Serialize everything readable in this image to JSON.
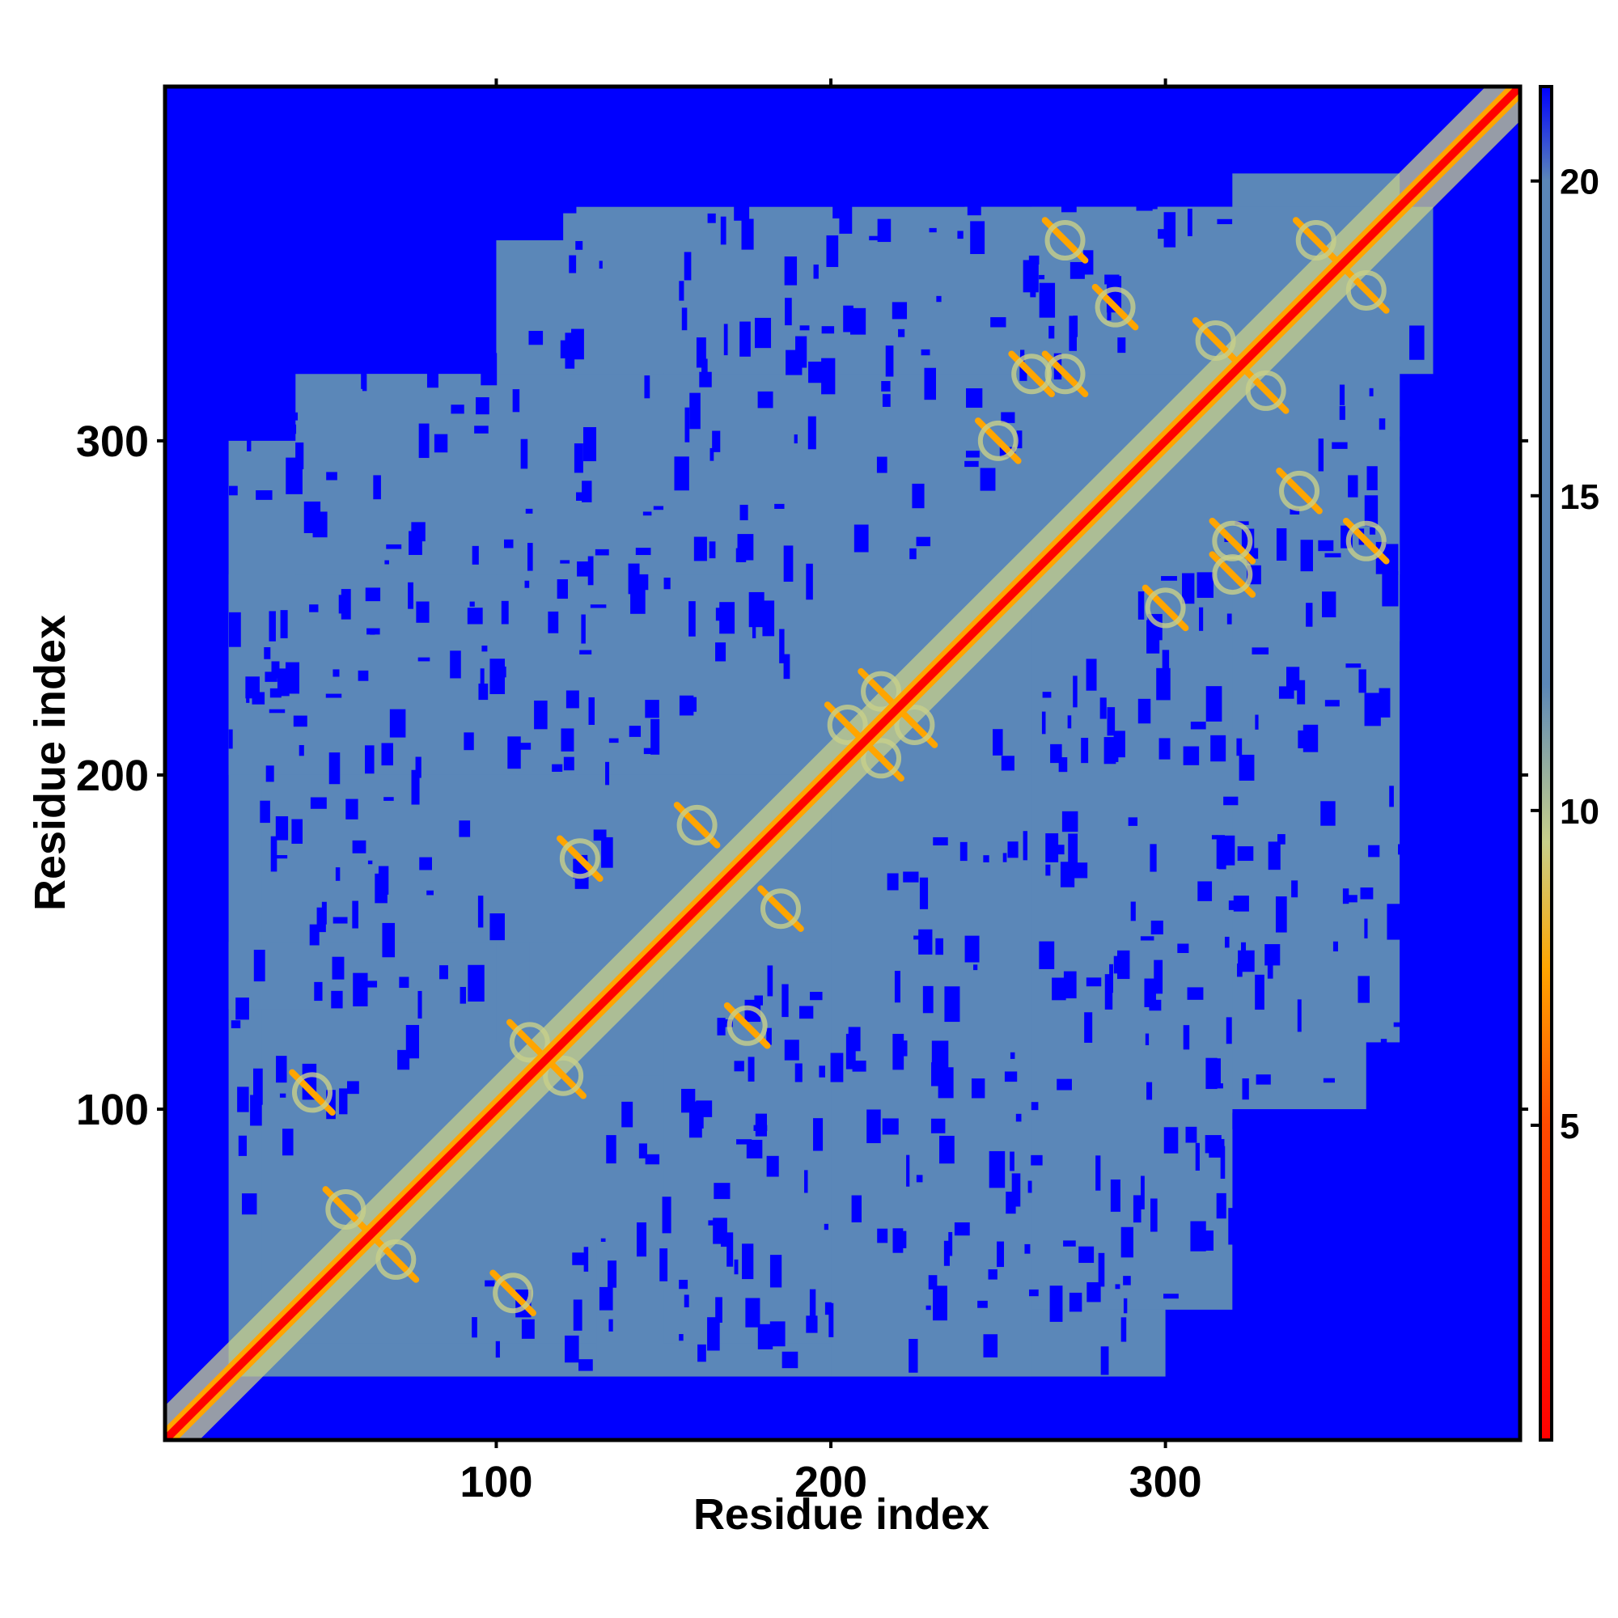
{
  "chart_data": {
    "type": "heatmap",
    "title": "",
    "xlabel": "Residue index",
    "ylabel": "Residue index",
    "xlim": [
      1,
      406
    ],
    "ylim": [
      1,
      406
    ],
    "x_ticks": [
      {
        "value": 100,
        "label": "100"
      },
      {
        "value": 200,
        "label": "200"
      },
      {
        "value": 300,
        "label": "300"
      }
    ],
    "y_ticks": [
      {
        "value": 100,
        "label": "100"
      },
      {
        "value": 200,
        "label": "200"
      },
      {
        "value": 300,
        "label": "300"
      }
    ],
    "colorbar": {
      "range": [
        0,
        21.5
      ],
      "ticks": [
        {
          "value": 5,
          "label": "5"
        },
        {
          "value": 10,
          "label": "10"
        },
        {
          "value": 15,
          "label": "15"
        },
        {
          "value": 20,
          "label": "20"
        }
      ],
      "stops": [
        {
          "value": 0,
          "color": "#ff0000"
        },
        {
          "value": 5,
          "color": "#ff4a00"
        },
        {
          "value": 7.5,
          "color": "#ffa500"
        },
        {
          "value": 9.5,
          "color": "#c8d08a"
        },
        {
          "value": 12,
          "color": "#5b87b8"
        },
        {
          "value": 20,
          "color": "#5b87b8"
        },
        {
          "value": 21.5,
          "color": "#0000ff"
        }
      ]
    },
    "colors": {
      "background_far": "#0000ff",
      "mid_distance": "#5b87b8",
      "contact_near": "#ffa500",
      "diagonal": "#ff0000",
      "transition": "#c8d08a"
    },
    "description_points": {
      "diagonal": "distance 0 along residue i = j",
      "helix_contacts_pairs": [
        [
          45,
          105
        ],
        [
          70,
          55
        ],
        [
          110,
          120
        ],
        [
          125,
          175
        ],
        [
          185,
          160
        ],
        [
          205,
          215
        ],
        [
          215,
          225
        ],
        [
          270,
          320
        ],
        [
          285,
          340
        ],
        [
          330,
          315
        ],
        [
          345,
          360
        ],
        [
          360,
          270
        ],
        [
          300,
          250
        ],
        [
          320,
          260
        ]
      ]
    }
  }
}
